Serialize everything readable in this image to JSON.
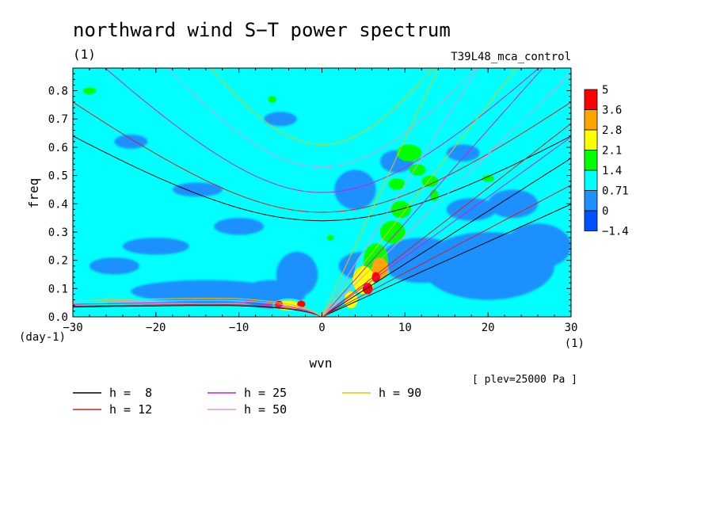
{
  "chart_data": {
    "type": "heatmap",
    "title": "northward wind S−T power spectrum",
    "subtitle": "(1)",
    "experiment": "T39L48_mca_control",
    "xlabel": "wvn",
    "xunit": "(1)",
    "ylabel": "freq",
    "yunit": "(day-1)",
    "xlim": [
      -30,
      30
    ],
    "ylim": [
      0,
      0.88
    ],
    "xticks": [
      "−30",
      "−20",
      "−10",
      "0",
      "10",
      "20",
      "30"
    ],
    "xtick_values": [
      -30,
      -20,
      -10,
      0,
      10,
      20,
      30
    ],
    "yticks": [
      "0.0",
      "0.1",
      "0.2",
      "0.3",
      "0.4",
      "0.5",
      "0.6",
      "0.7",
      "0.8"
    ],
    "ytick_values": [
      0.0,
      0.1,
      0.2,
      0.3,
      0.4,
      0.5,
      0.6,
      0.7,
      0.8
    ],
    "annotation": "[ plev=25000 Pa ]",
    "colorbar": {
      "levels": [
        "5",
        "3.6",
        "2.8",
        "2.1",
        "1.4",
        "0.71",
        "0",
        "−1.4"
      ],
      "colors": [
        "#ff0000",
        "#ffa500",
        "#ffff00",
        "#00ff00",
        "#00ffff",
        "#1e90ff",
        "#0050ff"
      ]
    },
    "field": {
      "background_color": "#00ffff",
      "low_color": "#1e90ff",
      "blue_patches": [
        {
          "x": 5,
          "y": 0.18,
          "rx": 3,
          "ry": 0.05
        },
        {
          "x": 12,
          "y": 0.2,
          "rx": 5,
          "ry": 0.08
        },
        {
          "x": 20,
          "y": 0.18,
          "rx": 8,
          "ry": 0.12
        },
        {
          "x": 26,
          "y": 0.25,
          "rx": 4,
          "ry": 0.08
        },
        {
          "x": 18,
          "y": 0.38,
          "rx": 3,
          "ry": 0.04
        },
        {
          "x": 23,
          "y": 0.4,
          "rx": 3,
          "ry": 0.05
        },
        {
          "x": 4,
          "y": 0.45,
          "rx": 2.5,
          "ry": 0.07
        },
        {
          "x": 9,
          "y": 0.55,
          "rx": 2,
          "ry": 0.04
        },
        {
          "x": -3,
          "y": 0.15,
          "rx": 2.5,
          "ry": 0.08
        },
        {
          "x": -6,
          "y": 0.08,
          "rx": 4,
          "ry": 0.05
        },
        {
          "x": -14,
          "y": 0.09,
          "rx": 9,
          "ry": 0.04
        },
        {
          "x": -20,
          "y": 0.25,
          "rx": 4,
          "ry": 0.03
        },
        {
          "x": -25,
          "y": 0.18,
          "rx": 3,
          "ry": 0.03
        },
        {
          "x": -10,
          "y": 0.32,
          "rx": 3,
          "ry": 0.03
        },
        {
          "x": -15,
          "y": 0.45,
          "rx": 3,
          "ry": 0.025
        },
        {
          "x": -23,
          "y": 0.62,
          "rx": 2,
          "ry": 0.025
        },
        {
          "x": -5,
          "y": 0.7,
          "rx": 2,
          "ry": 0.025
        },
        {
          "x": 17,
          "y": 0.58,
          "rx": 2,
          "ry": 0.03
        }
      ],
      "hot_spots": [
        {
          "x": 6.0,
          "y": 0.13,
          "rx": 2.2,
          "ry": 0.11,
          "level": 2
        },
        {
          "x": 6.5,
          "y": 0.2,
          "rx": 1.5,
          "ry": 0.06,
          "level": 3
        },
        {
          "x": 5.0,
          "y": 0.13,
          "rx": 1.3,
          "ry": 0.05,
          "level": 4
        },
        {
          "x": 7.0,
          "y": 0.17,
          "rx": 1.0,
          "ry": 0.04,
          "level": 5
        },
        {
          "x": 3.5,
          "y": 0.06,
          "rx": 0.8,
          "ry": 0.03,
          "level": 4
        },
        {
          "x": 5.5,
          "y": 0.1,
          "rx": 0.6,
          "ry": 0.02,
          "level": 6
        },
        {
          "x": 6.5,
          "y": 0.14,
          "rx": 0.5,
          "ry": 0.018,
          "level": 6
        },
        {
          "x": 8.5,
          "y": 0.3,
          "rx": 1.5,
          "ry": 0.04,
          "level": 3
        },
        {
          "x": 9.5,
          "y": 0.38,
          "rx": 1.2,
          "ry": 0.03,
          "level": 3
        },
        {
          "x": 10.5,
          "y": 0.58,
          "rx": 1.5,
          "ry": 0.03,
          "level": 3
        },
        {
          "x": 11.5,
          "y": 0.52,
          "rx": 1.0,
          "ry": 0.02,
          "level": 3
        },
        {
          "x": 9.0,
          "y": 0.47,
          "rx": 1.0,
          "ry": 0.02,
          "level": 3
        },
        {
          "x": 13.0,
          "y": 0.48,
          "rx": 1.0,
          "ry": 0.02,
          "level": 3
        },
        {
          "x": 13.5,
          "y": 0.43,
          "rx": 0.5,
          "ry": 0.02,
          "level": 3
        },
        {
          "x": -4.0,
          "y": 0.04,
          "rx": 2.0,
          "ry": 0.025,
          "level": 2
        },
        {
          "x": -4.0,
          "y": 0.04,
          "rx": 1.4,
          "ry": 0.018,
          "level": 4
        },
        {
          "x": -2.5,
          "y": 0.045,
          "rx": 0.5,
          "ry": 0.012,
          "level": 6
        },
        {
          "x": -5.2,
          "y": 0.045,
          "rx": 0.5,
          "ry": 0.012,
          "level": 6
        },
        {
          "x": -28,
          "y": 0.8,
          "rx": 0.8,
          "ry": 0.012,
          "level": 3
        },
        {
          "x": -6,
          "y": 0.77,
          "rx": 0.5,
          "ry": 0.012,
          "level": 3
        },
        {
          "x": 20,
          "y": 0.49,
          "rx": 0.7,
          "ry": 0.012,
          "level": 3
        },
        {
          "x": 1,
          "y": 0.28,
          "rx": 0.4,
          "ry": 0.01,
          "level": 3
        }
      ]
    },
    "dispersion_curves": [
      {
        "h": 8,
        "label": "h =  8",
        "color": "#000000",
        "ge": [
          0.34,
          0.64
        ],
        "kelvin_slope": 0.0187,
        "rossby": 0.055
      },
      {
        "h": 12,
        "label": "h = 12",
        "color": "#d62020",
        "ge": [
          0.37,
          0.76
        ],
        "kelvin_slope": 0.0228,
        "rossby": 0.06
      },
      {
        "h": 25,
        "label": "h = 25",
        "color": "#cc22cc",
        "ge": [
          0.44,
          0.98
        ],
        "kelvin_slope": 0.0331,
        "rossby": 0.07
      },
      {
        "h": 50,
        "label": "h = 50",
        "color": "#dd99dd",
        "ge": [
          0.53,
          1.25
        ],
        "kelvin_slope": 0.0468,
        "rossby": 0.08
      },
      {
        "h": 90,
        "label": "h = 90",
        "color": "#e6c800",
        "ge": [
          0.61,
          1.55
        ],
        "kelvin_slope": 0.0628,
        "rossby": 0.09
      }
    ]
  }
}
